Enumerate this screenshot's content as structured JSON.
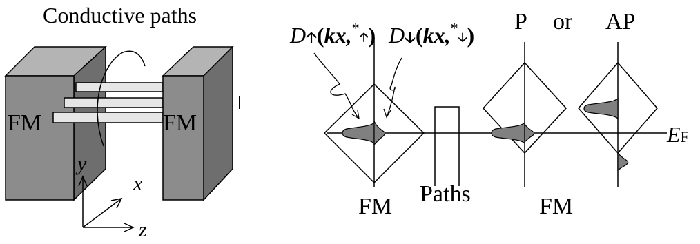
{
  "left_panel": {
    "title": "Conductive paths",
    "left_block_label": "FM",
    "right_block_label": "FM",
    "axes": {
      "y": "y",
      "x": "x",
      "z": "z"
    }
  },
  "right_panel": {
    "dos_up": {
      "D": "D",
      "arg": "kx,",
      "star": "*"
    },
    "dos_down": {
      "D": "D",
      "arg": "kx,",
      "star": "*"
    },
    "p_label": "P",
    "or_label": "or",
    "ap_label": "AP",
    "fermi": {
      "E": "E",
      "sub": "F"
    },
    "left_fm_label": "FM",
    "paths_label": "Paths",
    "right_fm_label": "FM"
  },
  "colors": {
    "block_front": "#8c8c8c",
    "block_side": "#6e6e6e",
    "block_top": "#b4b4b4",
    "rod_fill": "#e6e6e6",
    "dos_fill": "#808080"
  }
}
